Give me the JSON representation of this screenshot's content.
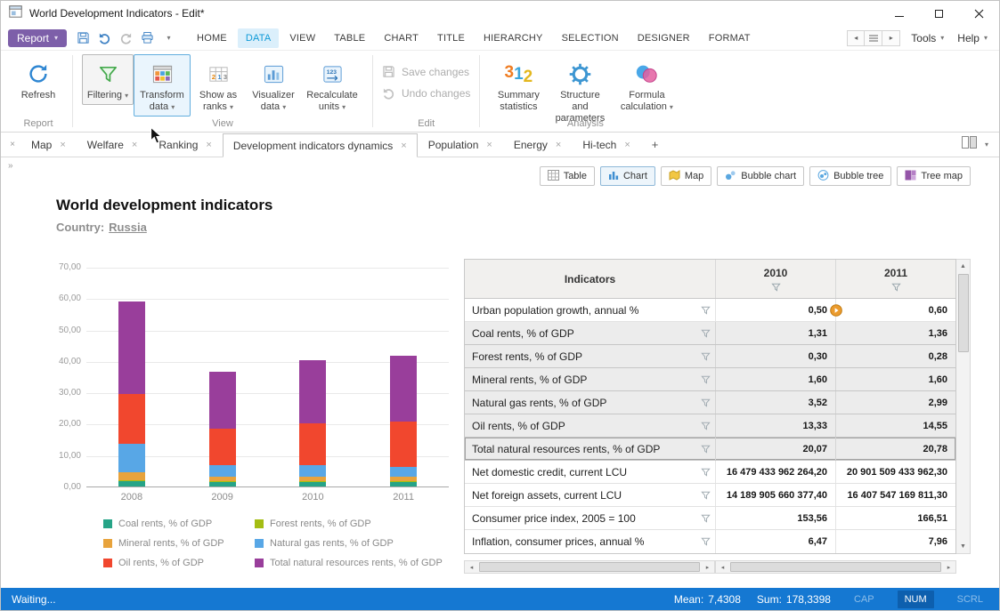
{
  "window": {
    "title": "World Development Indicators - Edit*"
  },
  "menubar": {
    "report_button": "Report",
    "tabs": [
      {
        "label": "HOME",
        "active": false
      },
      {
        "label": "DATA",
        "active": true
      },
      {
        "label": "VIEW",
        "active": false
      },
      {
        "label": "TABLE",
        "active": false
      },
      {
        "label": "CHART",
        "active": false
      },
      {
        "label": "TITLE",
        "active": false
      },
      {
        "label": "HIERARCHY",
        "active": false
      },
      {
        "label": "SELECTION",
        "active": false
      },
      {
        "label": "DESIGNER",
        "active": false
      },
      {
        "label": "FORMAT",
        "active": false
      }
    ],
    "tools_label": "Tools",
    "help_label": "Help"
  },
  "ribbon": {
    "report": {
      "label": "Report",
      "refresh": "Refresh"
    },
    "view": {
      "label": "View",
      "filtering": "Filtering",
      "transform_data": "Transform data",
      "show_as_ranks": "Show as ranks",
      "visualizer_data": "Visualizer data",
      "recalculate_units": "Recalculate units"
    },
    "edit": {
      "label": "Edit",
      "save_changes": "Save changes",
      "undo_changes": "Undo changes"
    },
    "analysis": {
      "label": "Analysis",
      "summary_statistics": "Summary statistics",
      "structure_parameters": "Structure and parameters",
      "formula_calculation": "Formula calculation"
    }
  },
  "sheet_tabs": {
    "items": [
      {
        "label": "Map",
        "active": false
      },
      {
        "label": "Welfare",
        "active": false
      },
      {
        "label": "Ranking",
        "active": false
      },
      {
        "label": "Development indicators dynamics",
        "active": true
      },
      {
        "label": "Population",
        "active": false
      },
      {
        "label": "Energy",
        "active": false
      },
      {
        "label": "Hi-tech",
        "active": false
      }
    ],
    "add_label": "+"
  },
  "view_switcher": [
    {
      "label": "Table",
      "icon": "table-icon",
      "active": false
    },
    {
      "label": "Chart",
      "icon": "chart-icon",
      "active": true
    },
    {
      "label": "Map",
      "icon": "map-icon",
      "active": false
    },
    {
      "label": "Bubble chart",
      "icon": "bubble-chart-icon",
      "active": false
    },
    {
      "label": "Bubble tree",
      "icon": "bubble-tree-icon",
      "active": false
    },
    {
      "label": "Tree map",
      "icon": "tree-map-icon",
      "active": false
    }
  ],
  "report_header": {
    "title": "World development indicators",
    "country_label": "Country:",
    "country": "Russia"
  },
  "chart_data": {
    "type": "bar",
    "stacked": true,
    "categories": [
      "2008",
      "2009",
      "2010",
      "2011"
    ],
    "series": [
      {
        "name": "Coal rents, % of GDP",
        "color": "#26a487",
        "values": [
          1.8,
          1.4,
          1.31,
          1.36
        ]
      },
      {
        "name": "Forest rents, % of GDP",
        "color": "#a4bd13",
        "values": [
          0.3,
          0.3,
          0.3,
          0.28
        ]
      },
      {
        "name": "Mineral rents, % of GDP",
        "color": "#e8a33c",
        "values": [
          2.4,
          1.5,
          1.6,
          1.6
        ]
      },
      {
        "name": "Natural gas rents, % of GDP",
        "color": "#58a7e6",
        "values": [
          9.0,
          3.6,
          3.52,
          2.99
        ]
      },
      {
        "name": "Oil rents, % of GDP",
        "color": "#f1472e",
        "values": [
          16.0,
          11.5,
          13.33,
          14.55
        ]
      },
      {
        "name": "Total natural resources rents, % of GDP",
        "color": "#993e9b",
        "values": [
          29.5,
          18.3,
          20.07,
          20.78
        ]
      }
    ],
    "ylim": [
      0,
      70
    ],
    "ytick_step": 10,
    "ytick_labels": [
      "0,00",
      "10,00",
      "20,00",
      "30,00",
      "40,00",
      "50,00",
      "60,00",
      "70,00"
    ],
    "grid": true,
    "legend_position": "bottom"
  },
  "table": {
    "columns": [
      "Indicators",
      "2010",
      "2011"
    ],
    "rows": [
      {
        "indicator": "Urban population growth, annual %",
        "y2010": "0,50",
        "y2011": "0,60",
        "highlighted": false,
        "marker": true
      },
      {
        "indicator": "Coal rents, % of GDP",
        "y2010": "1,31",
        "y2011": "1,36",
        "highlighted": true
      },
      {
        "indicator": "Forest rents, % of GDP",
        "y2010": "0,30",
        "y2011": "0,28",
        "highlighted": true
      },
      {
        "indicator": "Mineral rents, % of GDP",
        "y2010": "1,60",
        "y2011": "1,60",
        "highlighted": true
      },
      {
        "indicator": "Natural gas rents, % of GDP",
        "y2010": "3,52",
        "y2011": "2,99",
        "highlighted": true
      },
      {
        "indicator": "Oil rents, % of GDP",
        "y2010": "13,33",
        "y2011": "14,55",
        "highlighted": true
      },
      {
        "indicator": "Total natural resources rents, % of GDP",
        "y2010": "20,07",
        "y2011": "20,78",
        "highlighted": true,
        "total": true
      },
      {
        "indicator": "Net domestic credit, current LCU",
        "y2010": "16 479 433 962 264,20",
        "y2011": "20 901 509 433 962,30",
        "highlighted": false
      },
      {
        "indicator": "Net foreign assets, current LCU",
        "y2010": "14 189 905 660 377,40",
        "y2011": "16 407 547 169 811,30",
        "highlighted": false
      },
      {
        "indicator": "Consumer price index, 2005 = 100",
        "y2010": "153,56",
        "y2011": "166,51",
        "highlighted": false
      },
      {
        "indicator": "Inflation, consumer prices, annual %",
        "y2010": "6,47",
        "y2011": "7,96",
        "highlighted": false
      }
    ]
  },
  "statusbar": {
    "status": "Waiting...",
    "mean_label": "Mean:",
    "mean_value": "7,4308",
    "sum_label": "Sum:",
    "sum_value": "178,3398",
    "cap": "CAP",
    "num": "NUM",
    "scrl": "SCRL"
  },
  "colors": {
    "statusbar": "#1578d2",
    "report_button": "#7d5fa9",
    "active_menu_tab_text": "#0f9ad7",
    "active_menu_tab_bg": "#dbeffb"
  }
}
